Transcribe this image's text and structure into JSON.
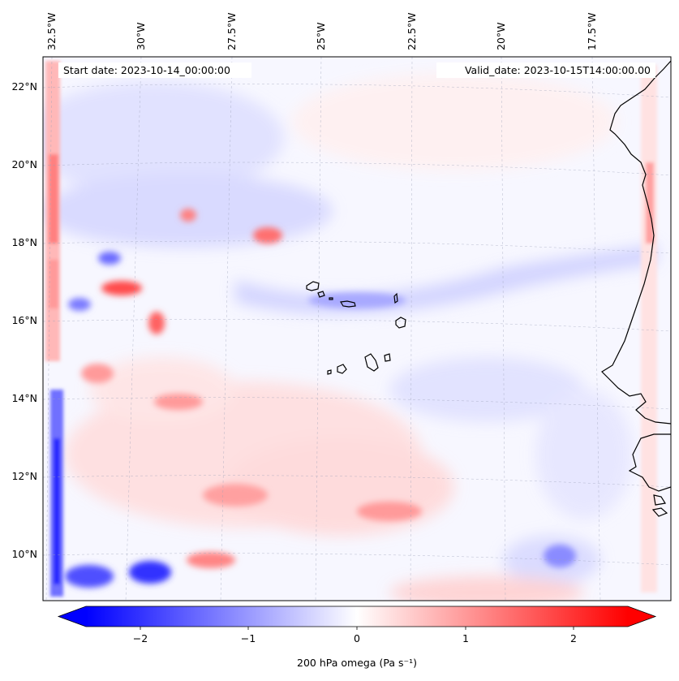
{
  "map": {
    "start_date_text": "Start date: 2023-10-14_00:00:00",
    "valid_date_text": "Valid_date: 2023-10-15T14:00:00.00",
    "lon_labels": [
      "32.5°W",
      "30°W",
      "27.5°W",
      "25°W",
      "22.5°W",
      "20°W",
      "17.5°W"
    ],
    "lat_labels": [
      "22°N",
      "20°N",
      "18°N",
      "16°N",
      "14°N",
      "12°N",
      "10°N"
    ],
    "field": "200 hPa omega",
    "colormap": "bwr",
    "gridlines": true,
    "coastlines": true,
    "features": [
      "Cape Verde islands",
      "West African coastline"
    ]
  },
  "colorbar": {
    "label": "200 hPa omega (Pa s⁻¹)",
    "ticks": [
      "−2",
      "−1",
      "0",
      "1",
      "2"
    ],
    "tick_values": [
      -2,
      -1,
      0,
      1,
      2
    ],
    "range": [
      -2.5,
      2.5
    ],
    "extend": "both",
    "colors": {
      "negative": "#0000ff",
      "zero": "#ffffff",
      "positive": "#ff0000"
    }
  }
}
